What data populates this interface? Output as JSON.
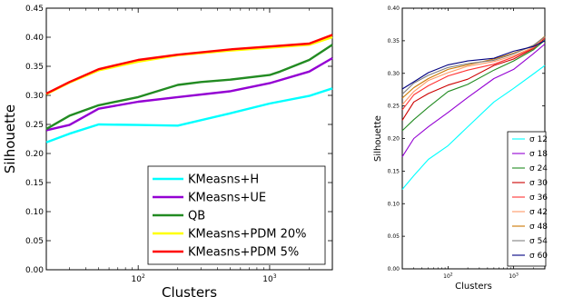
{
  "chart_data": [
    {
      "type": "line",
      "title": "",
      "xlabel": "Clusters",
      "ylabel": "Silhouette",
      "xscale": "log",
      "xlim": [
        20,
        3000
      ],
      "ylim": [
        0.0,
        0.45
      ],
      "yticks": [
        "0.00",
        "0.05",
        "0.10",
        "0.15",
        "0.20",
        "0.25",
        "0.30",
        "0.35",
        "0.40",
        "0.45"
      ],
      "xticks": [
        {
          "value": 100,
          "base": "10",
          "exp": "2"
        },
        {
          "value": 1000,
          "base": "10",
          "exp": "3"
        }
      ],
      "grid": false,
      "legend_position": "bottom-right",
      "series": [
        {
          "name": "KMeasns+H",
          "color": "#00ffff",
          "x": [
            20,
            30,
            50,
            100,
            200,
            500,
            1000,
            2000,
            3000
          ],
          "y": [
            0.219,
            0.234,
            0.25,
            0.249,
            0.248,
            0.269,
            0.286,
            0.299,
            0.312
          ]
        },
        {
          "name": "KMeasns+UE",
          "color": "#9400d3",
          "x": [
            20,
            30,
            50,
            100,
            200,
            500,
            1000,
            2000,
            3000
          ],
          "y": [
            0.24,
            0.249,
            0.277,
            0.289,
            0.297,
            0.307,
            0.321,
            0.341,
            0.364
          ]
        },
        {
          "name": "QB",
          "color": "#228b22",
          "x": [
            20,
            30,
            50,
            100,
            200,
            300,
            500,
            1000,
            1200,
            2000,
            3000
          ],
          "y": [
            0.242,
            0.265,
            0.283,
            0.297,
            0.318,
            0.323,
            0.327,
            0.335,
            0.341,
            0.361,
            0.387
          ]
        },
        {
          "name": "KMeasns+PDM 20%",
          "color": "#ffff00",
          "x": [
            20,
            30,
            50,
            100,
            200,
            500,
            1000,
            2000,
            3000
          ],
          "y": [
            0.302,
            0.322,
            0.343,
            0.358,
            0.369,
            0.377,
            0.382,
            0.387,
            0.4
          ]
        },
        {
          "name": "KMeasns+PDM 5%",
          "color": "#ff0000",
          "x": [
            20,
            30,
            50,
            100,
            200,
            500,
            1000,
            2000,
            3000
          ],
          "y": [
            0.303,
            0.323,
            0.345,
            0.361,
            0.37,
            0.379,
            0.384,
            0.389,
            0.404
          ]
        }
      ]
    },
    {
      "type": "line",
      "title": "",
      "xlabel": "Clusters",
      "ylabel": "Silhouette",
      "xscale": "log",
      "xlim": [
        20,
        3000
      ],
      "ylim": [
        0.0,
        0.4
      ],
      "yticks": [
        "0.00",
        "0.05",
        "0.10",
        "0.15",
        "0.20",
        "0.25",
        "0.30",
        "0.35",
        "0.40"
      ],
      "xticks": [
        {
          "value": 100,
          "base": "10",
          "exp": "2"
        },
        {
          "value": 1000,
          "base": "10",
          "exp": "3"
        }
      ],
      "grid": false,
      "legend_position": "bottom-right",
      "x": [
        20,
        30,
        50,
        100,
        200,
        500,
        1000,
        2000,
        3000
      ],
      "series": [
        {
          "name": "σ 12",
          "color": "#00ffff",
          "y": [
            0.122,
            0.143,
            0.168,
            0.189,
            0.218,
            0.256,
            0.277,
            0.299,
            0.312
          ]
        },
        {
          "name": "σ 18",
          "color": "#9400d3",
          "y": [
            0.172,
            0.2,
            0.218,
            0.24,
            0.263,
            0.292,
            0.306,
            0.33,
            0.345
          ]
        },
        {
          "name": "σ 24",
          "color": "#228b22",
          "y": [
            0.212,
            0.229,
            0.248,
            0.272,
            0.283,
            0.305,
            0.319,
            0.336,
            0.351
          ]
        },
        {
          "name": "σ 30",
          "color": "#cc0000",
          "y": [
            0.228,
            0.256,
            0.269,
            0.282,
            0.291,
            0.312,
            0.322,
            0.338,
            0.354
          ]
        },
        {
          "name": "σ 36",
          "color": "#ff3333",
          "y": [
            0.244,
            0.267,
            0.281,
            0.296,
            0.305,
            0.314,
            0.325,
            0.339,
            0.355
          ]
        },
        {
          "name": "σ 42",
          "color": "#ff9966",
          "y": [
            0.252,
            0.272,
            0.289,
            0.301,
            0.311,
            0.318,
            0.327,
            0.34,
            0.356
          ]
        },
        {
          "name": "σ 48",
          "color": "#cc7700",
          "y": [
            0.262,
            0.278,
            0.292,
            0.306,
            0.313,
            0.322,
            0.331,
            0.342,
            0.357
          ]
        },
        {
          "name": "σ 54",
          "color": "#808080",
          "y": [
            0.268,
            0.285,
            0.297,
            0.309,
            0.315,
            0.32,
            0.33,
            0.343,
            0.356
          ]
        },
        {
          "name": "σ 60",
          "color": "#000080",
          "y": [
            0.276,
            0.287,
            0.301,
            0.313,
            0.319,
            0.323,
            0.334,
            0.341,
            0.35
          ]
        }
      ]
    }
  ]
}
